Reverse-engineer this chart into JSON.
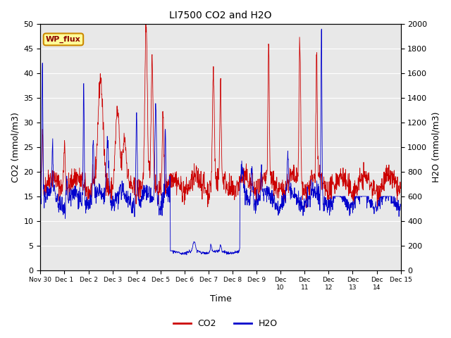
{
  "title": "LI7500 CO2 and H2O",
  "xlabel": "Time",
  "ylabel_left": "CO2 (mmol/m3)",
  "ylabel_right": "H2O (mmol/m3)",
  "ylim_left": [
    0,
    50
  ],
  "ylim_right": [
    0,
    2000
  ],
  "yticks_left": [
    0,
    5,
    10,
    15,
    20,
    25,
    30,
    35,
    40,
    45,
    50
  ],
  "yticks_right": [
    0,
    200,
    400,
    600,
    800,
    1000,
    1200,
    1400,
    1600,
    1800,
    2000
  ],
  "background_color": "#e8e8e8",
  "co2_color": "#cc0000",
  "h2o_color": "#0000cc",
  "annotation_text": "WP_flux",
  "annotation_bg": "#ffff99",
  "annotation_border": "#cc8800",
  "tick_labels": [
    "Nov 30",
    "Dec 1",
    "Dec 2",
    "Dec 3",
    "Dec 4",
    "Dec 5",
    "Dec 6",
    "Dec 7",
    "Dec 8",
    "Dec 9",
    "Dec\n10",
    "Dec\n11",
    "Dec\n12",
    "Dec\n13",
    "Dec\n14",
    "Dec 15"
  ],
  "seed": 42
}
